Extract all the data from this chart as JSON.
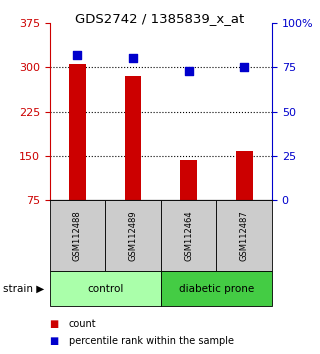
{
  "title": "GDS2742 / 1385839_x_at",
  "samples": [
    "GSM112488",
    "GSM112489",
    "GSM112464",
    "GSM112487"
  ],
  "counts": [
    305,
    285,
    143,
    158
  ],
  "percentiles": [
    82,
    80,
    73,
    75
  ],
  "bar_color": "#cc0000",
  "percentile_color": "#0000cc",
  "left_yticks": [
    75,
    150,
    225,
    300,
    375
  ],
  "right_yticks": [
    0,
    25,
    50,
    75,
    100
  ],
  "right_yticklabels": [
    "0",
    "25",
    "50",
    "75",
    "100%"
  ],
  "left_color": "#cc0000",
  "right_color": "#0000cc",
  "ylim_left": [
    75,
    375
  ],
  "ylim_right": [
    0,
    100
  ],
  "background_color": "#ffffff",
  "legend_count_label": "count",
  "legend_percentile_label": "percentile rank within the sample",
  "strain_label": "strain",
  "group_defs": [
    {
      "name": "control",
      "start": 0,
      "end": 2,
      "color": "#aaffaa"
    },
    {
      "name": "diabetic prone",
      "start": 2,
      "end": 4,
      "color": "#44cc44"
    }
  ],
  "sample_box_color": "#cccccc",
  "dotted_yticks": [
    150,
    225,
    300
  ]
}
